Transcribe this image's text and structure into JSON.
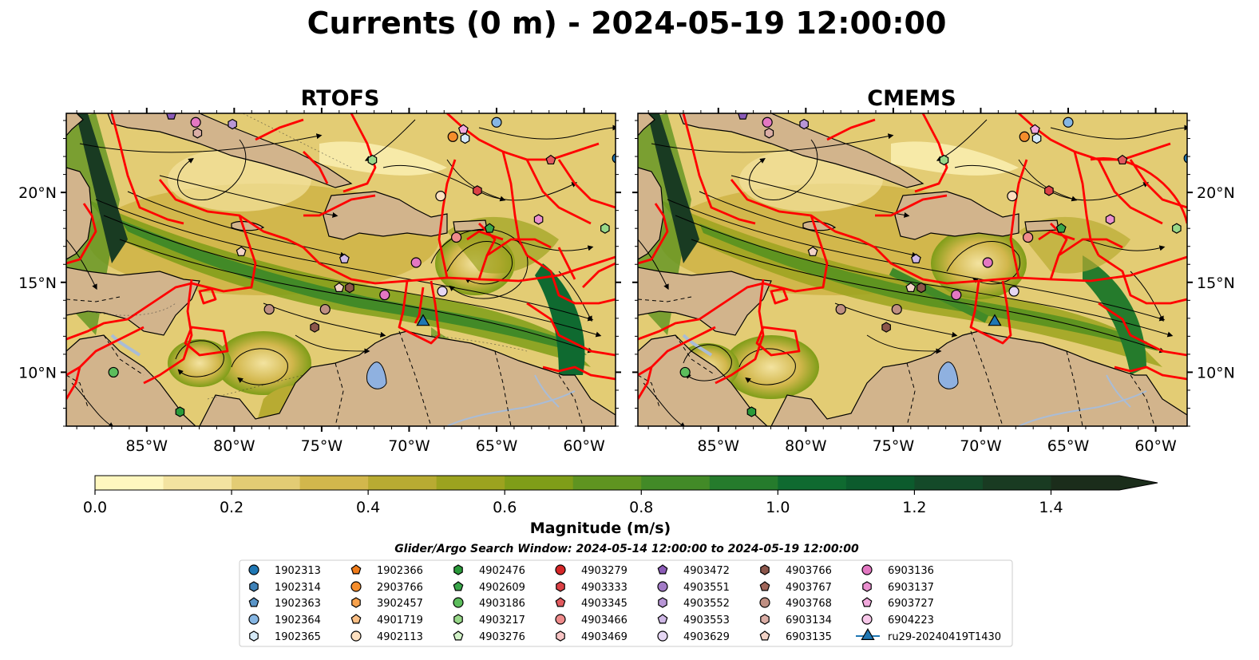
{
  "figure": {
    "title": "Currents (0 m) - 2024-05-19 12:00:00",
    "panels": [
      {
        "title": "RTOFS"
      },
      {
        "title": "CMEMS"
      }
    ]
  },
  "colors": {
    "land": "#d2b48c",
    "lake": "#8fb1e0",
    "river": "#a9bcd6",
    "eez": "#ff0000",
    "streamline": "#000000",
    "glider": "#1f77b4"
  },
  "chart_data": {
    "type": "heatmap",
    "xaxis": {
      "ticks": [
        "85°W",
        "80°W",
        "75°W",
        "70°W",
        "65°W",
        "60°W"
      ],
      "values": [
        -85,
        -80,
        -75,
        -70,
        -65,
        -60
      ],
      "range": [
        -89.6,
        -58.2
      ]
    },
    "yaxis": {
      "ticks": [
        "10°N",
        "15°N",
        "20°N"
      ],
      "values": [
        10,
        15,
        20
      ],
      "range": [
        7.0,
        24.4
      ]
    },
    "colorbar": {
      "label": "Magnitude (m/s)",
      "range": [
        0.0,
        1.5
      ],
      "ticks": [
        "0.0",
        "0.2",
        "0.4",
        "0.6",
        "0.8",
        "1.0",
        "1.2",
        "1.4"
      ],
      "tick_values": [
        0.0,
        0.2,
        0.4,
        0.6,
        0.8,
        1.0,
        1.2,
        1.4
      ],
      "extend": "max",
      "bins": [
        {
          "from": 0.0,
          "to": 0.1,
          "color": "#fff7bf"
        },
        {
          "from": 0.1,
          "to": 0.2,
          "color": "#f3e3a0"
        },
        {
          "from": 0.2,
          "to": 0.3,
          "color": "#e3cc74"
        },
        {
          "from": 0.3,
          "to": 0.4,
          "color": "#d2b74c"
        },
        {
          "from": 0.4,
          "to": 0.5,
          "color": "#b8ab32"
        },
        {
          "from": 0.5,
          "to": 0.6,
          "color": "#9ca31f"
        },
        {
          "from": 0.6,
          "to": 0.7,
          "color": "#7f9d18"
        },
        {
          "from": 0.7,
          "to": 0.8,
          "color": "#5f9420"
        },
        {
          "from": 0.8,
          "to": 0.9,
          "color": "#428a27"
        },
        {
          "from": 0.9,
          "to": 1.0,
          "color": "#257b2c"
        },
        {
          "from": 1.0,
          "to": 1.1,
          "color": "#0f6a30"
        },
        {
          "from": 1.1,
          "to": 1.2,
          "color": "#0c5b2d"
        },
        {
          "from": 1.2,
          "to": 1.3,
          "color": "#144a29"
        },
        {
          "from": 1.3,
          "to": 1.4,
          "color": "#193b22"
        },
        {
          "from": 1.4,
          "to": 1.5,
          "color": "#1b2d1b"
        }
      ]
    },
    "search_window": "Glider/Argo Search Window: 2024-05-14 12:00:00 to 2024-05-19 12:00:00",
    "legend": [
      {
        "label": "1902313",
        "marker": "circle",
        "color": "#1f77b4"
      },
      {
        "label": "1902314",
        "marker": "hexagon",
        "color": "#3f82b8"
      },
      {
        "label": "1902363",
        "marker": "pentagon",
        "color": "#5a95c8"
      },
      {
        "label": "1902364",
        "marker": "circle",
        "color": "#86b6e3"
      },
      {
        "label": "1902365",
        "marker": "hexagon",
        "color": "#d6eaf8"
      },
      {
        "label": "1902366",
        "marker": "pentagon",
        "color": "#f07c1a"
      },
      {
        "label": "2903766",
        "marker": "circle",
        "color": "#f58d2c"
      },
      {
        "label": "3902457",
        "marker": "hexagon",
        "color": "#f8a24c"
      },
      {
        "label": "4901719",
        "marker": "pentagon",
        "color": "#fbbf85"
      },
      {
        "label": "4902113",
        "marker": "circle",
        "color": "#fde0c0"
      },
      {
        "label": "4902476",
        "marker": "hexagon",
        "color": "#2a9a3a"
      },
      {
        "label": "4902609",
        "marker": "pentagon",
        "color": "#3aa64a"
      },
      {
        "label": "4903186",
        "marker": "circle",
        "color": "#5cbd5c"
      },
      {
        "label": "4903217",
        "marker": "hexagon",
        "color": "#98d889"
      },
      {
        "label": "4903276",
        "marker": "pentagon",
        "color": "#d2f2c8"
      },
      {
        "label": "4903279",
        "marker": "circle",
        "color": "#d62728"
      },
      {
        "label": "4903333",
        "marker": "hexagon",
        "color": "#dc4146"
      },
      {
        "label": "4903345",
        "marker": "pentagon",
        "color": "#e25a5e"
      },
      {
        "label": "4903466",
        "marker": "circle",
        "color": "#ef8b8b"
      },
      {
        "label": "4903469",
        "marker": "hexagon",
        "color": "#f8c4c4"
      },
      {
        "label": "4903472",
        "marker": "pentagon",
        "color": "#8c5cb8"
      },
      {
        "label": "4903551",
        "marker": "circle",
        "color": "#a27bc6"
      },
      {
        "label": "4903552",
        "marker": "hexagon",
        "color": "#b896d6"
      },
      {
        "label": "4903553",
        "marker": "pentagon",
        "color": "#cfb8e6"
      },
      {
        "label": "4903629",
        "marker": "circle",
        "color": "#e5d6f3"
      },
      {
        "label": "4903766",
        "marker": "hexagon",
        "color": "#8c564b"
      },
      {
        "label": "4903767",
        "marker": "pentagon",
        "color": "#a0665a"
      },
      {
        "label": "4903768",
        "marker": "circle",
        "color": "#bf8f82"
      },
      {
        "label": "6903134",
        "marker": "hexagon",
        "color": "#dbaea6"
      },
      {
        "label": "6903135",
        "marker": "pentagon",
        "color": "#f2d2c6"
      },
      {
        "label": "6903136",
        "marker": "circle",
        "color": "#e377c2"
      },
      {
        "label": "6903137",
        "marker": "hexagon",
        "color": "#ea8fcf"
      },
      {
        "label": "6903727",
        "marker": "pentagon",
        "color": "#f1a9dc"
      },
      {
        "label": "6904223",
        "marker": "circle",
        "color": "#f8c8ea"
      },
      {
        "label": "ru29-20240419T1430",
        "marker": "triangle",
        "color": "#1f77b4"
      }
    ],
    "floats": [
      {
        "label": "4903472",
        "lon": -83.6,
        "lat": 24.3
      },
      {
        "label": "6903136",
        "lon": -82.2,
        "lat": 23.9
      },
      {
        "label": "4903552",
        "lon": -80.1,
        "lat": 23.8
      },
      {
        "label": "6903134",
        "lon": -82.1,
        "lat": 23.3
      },
      {
        "label": "1902364",
        "lon": -65.0,
        "lat": 23.9
      },
      {
        "label": "6903727",
        "lon": -66.9,
        "lat": 23.5
      },
      {
        "label": "2903766",
        "lon": -67.5,
        "lat": 23.1
      },
      {
        "label": "1902365",
        "lon": -66.8,
        "lat": 23.0
      },
      {
        "label": "4903217",
        "lon": -72.1,
        "lat": 21.8
      },
      {
        "label": "1902313",
        "lon": -58.1,
        "lat": 21.9
      },
      {
        "label": "4903345",
        "lon": -61.9,
        "lat": 21.8
      },
      {
        "label": "4903333",
        "lon": -66.1,
        "lat": 20.1
      },
      {
        "label": "4902113",
        "lon": -68.2,
        "lat": 19.8
      },
      {
        "label": "6903137",
        "lon": -62.6,
        "lat": 18.5
      },
      {
        "label": "4902609",
        "lon": -65.4,
        "lat": 18.0
      },
      {
        "label": "4903217",
        "lon": -58.8,
        "lat": 18.0
      },
      {
        "label": "4903466",
        "lon": -67.3,
        "lat": 17.5
      },
      {
        "label": "6903135",
        "lon": -79.6,
        "lat": 16.7
      },
      {
        "label": "4903553",
        "lon": -73.7,
        "lat": 16.3
      },
      {
        "label": "6903136",
        "lon": -69.6,
        "lat": 16.1
      },
      {
        "label": "6903135",
        "lon": -74.0,
        "lat": 14.7
      },
      {
        "label": "4903766",
        "lon": -73.4,
        "lat": 14.7
      },
      {
        "label": "4903629",
        "lon": -68.1,
        "lat": 14.5
      },
      {
        "label": "6903136",
        "lon": -71.4,
        "lat": 14.3
      },
      {
        "label": "4903768",
        "lon": -78.0,
        "lat": 13.5
      },
      {
        "label": "4903768",
        "lon": -74.8,
        "lat": 13.5
      },
      {
        "label": "4903766",
        "lon": -75.4,
        "lat": 12.5
      },
      {
        "label": "4903186",
        "lon": -86.9,
        "lat": 10.0
      },
      {
        "label": "4902476",
        "lon": -83.1,
        "lat": 7.8
      }
    ],
    "glider_track": [
      {
        "lon": -69.2,
        "lat": 12.8
      }
    ]
  },
  "legend_title": "Glider/Argo Search Window: 2024-05-14 12:00:00 to 2024-05-19 12:00:00"
}
